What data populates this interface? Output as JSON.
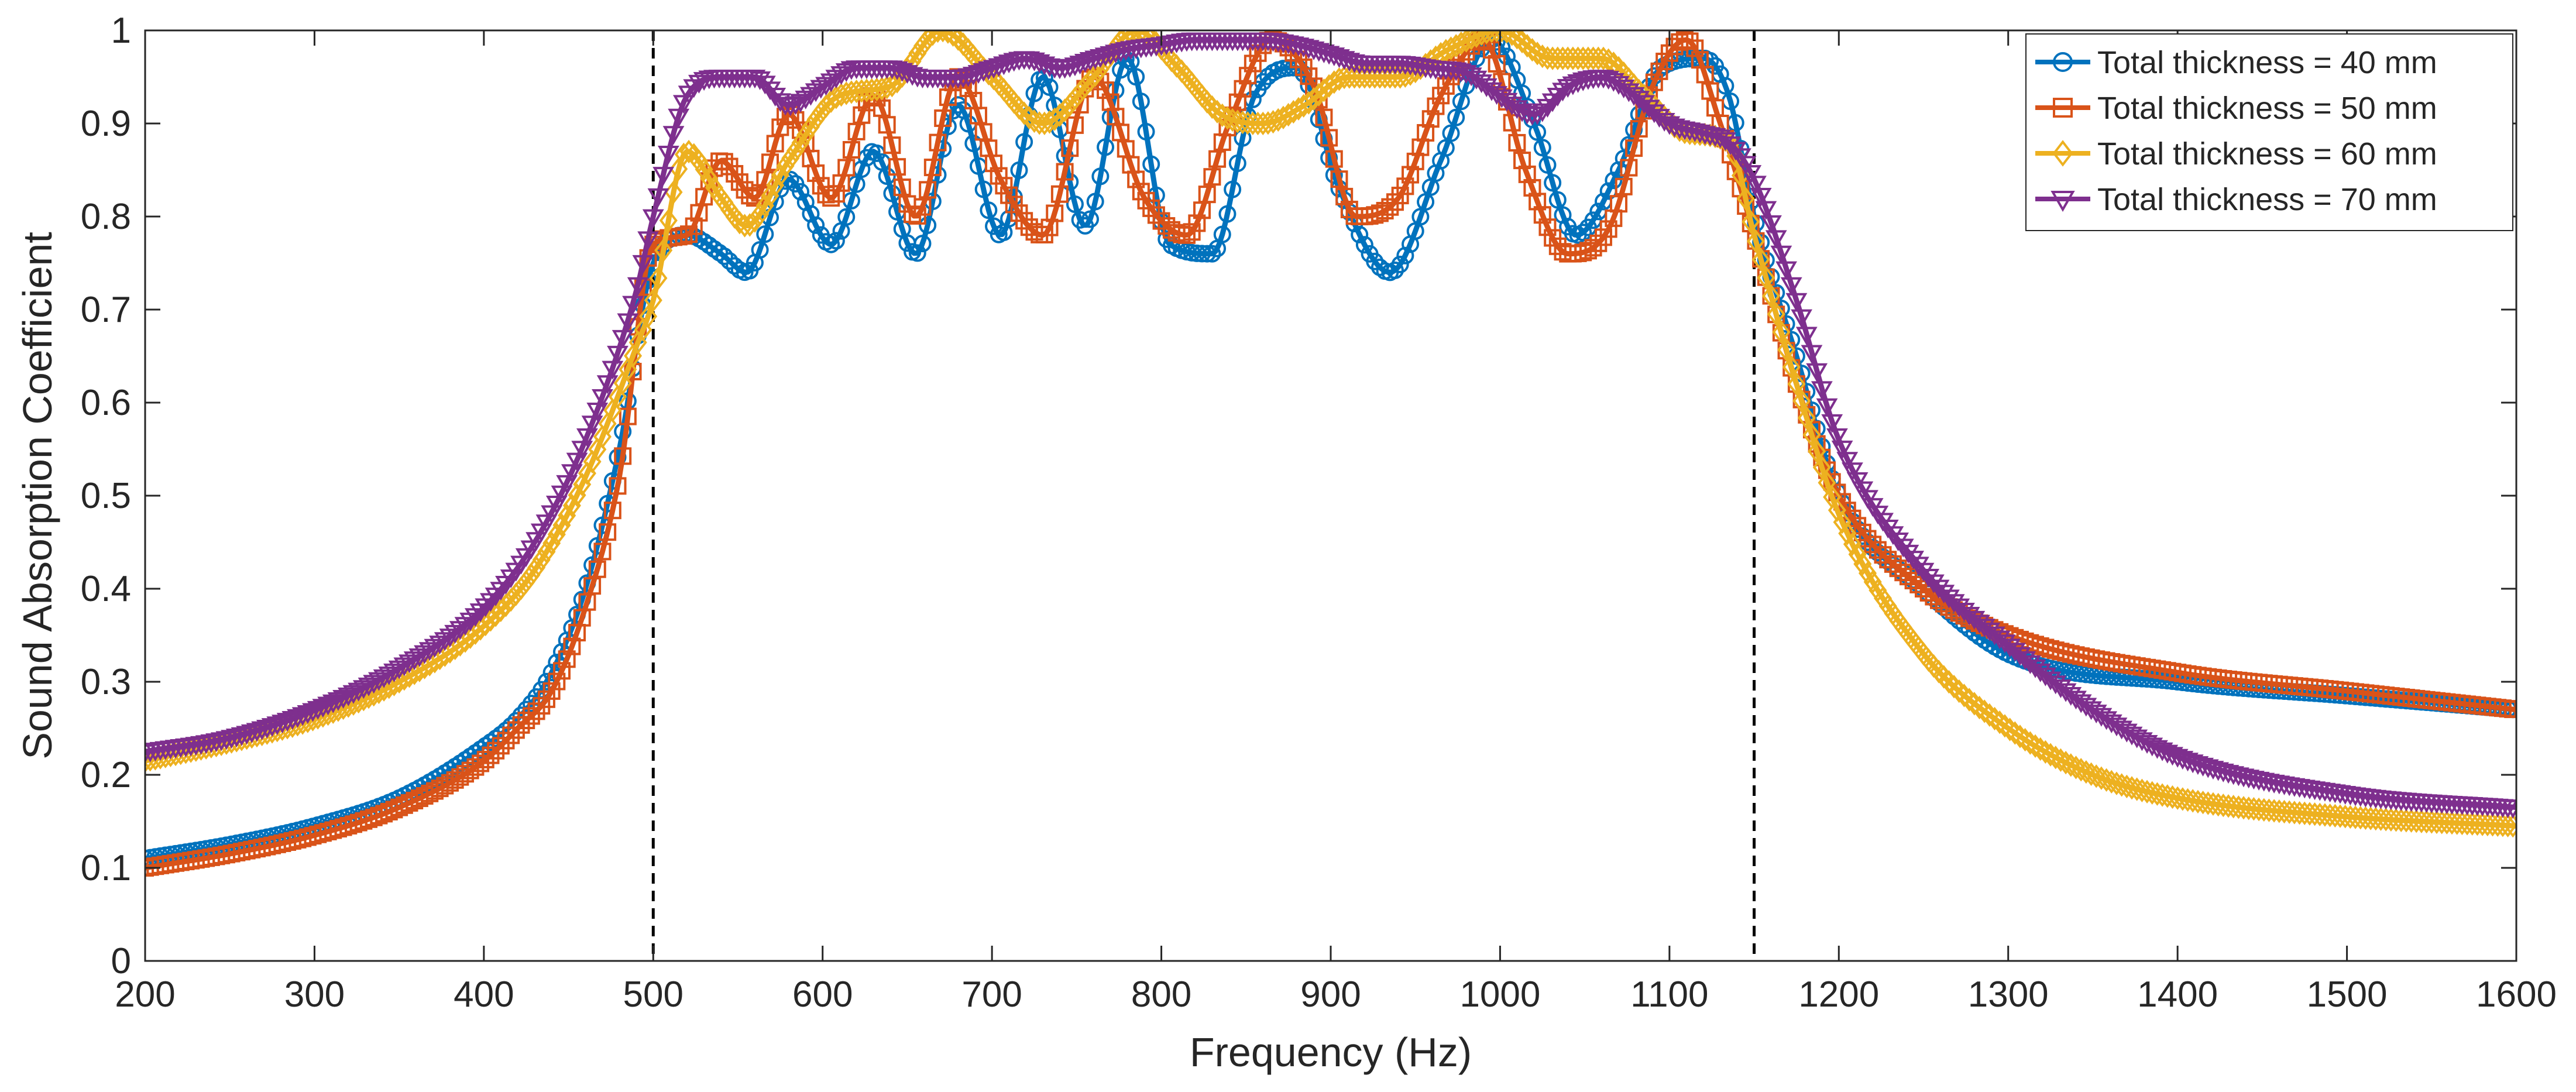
{
  "chart_data": {
    "type": "line",
    "title": "",
    "xlabel": "Frequency (Hz)",
    "ylabel": "Sound Absorption Coefficient",
    "xlim": [
      200,
      1600
    ],
    "ylim": [
      0,
      1
    ],
    "xticks": [
      200,
      300,
      400,
      500,
      600,
      700,
      800,
      900,
      1000,
      1100,
      1200,
      1300,
      1400,
      1500,
      1600
    ],
    "xtick_labels": [
      "200",
      "300",
      "400",
      "500",
      "600",
      "700",
      "800",
      "900",
      "1000",
      "1100",
      "1200",
      "1300",
      "1400",
      "1500",
      "1600"
    ],
    "yticks": [
      0,
      0.1,
      0.2,
      0.3,
      0.4,
      0.5,
      0.6,
      0.7,
      0.8,
      0.9,
      1
    ],
    "ytick_labels": [
      "0",
      "0.1",
      "0.2",
      "0.3",
      "0.4",
      "0.5",
      "0.6",
      "0.7",
      "0.8",
      "0.9",
      "1"
    ],
    "grid": false,
    "legend_position": "top-right",
    "reference_lines": [
      {
        "x": 500,
        "style": "dashed",
        "color": "#000000"
      },
      {
        "x": 1150,
        "style": "dashed",
        "color": "#000000"
      }
    ],
    "series": [
      {
        "name": "Total thickness = 40 mm",
        "color": "#0072BD",
        "marker": "circle",
        "x": [
          200,
          250,
          300,
          350,
          400,
          420,
          440,
          460,
          480,
          500,
          520,
          540,
          555,
          580,
          605,
          630,
          655,
          680,
          705,
          730,
          755,
          780,
          805,
          830,
          855,
          880,
          905,
          935,
          965,
          995,
          1020,
          1045,
          1070,
          1095,
          1120,
          1135,
          1150,
          1175,
          1200,
          1250,
          1300,
          1400,
          1500,
          1600
        ],
        "y": [
          0.11,
          0.125,
          0.145,
          0.175,
          0.23,
          0.26,
          0.31,
          0.4,
          0.55,
          0.75,
          0.78,
          0.76,
          0.74,
          0.84,
          0.77,
          0.87,
          0.76,
          0.92,
          0.78,
          0.95,
          0.79,
          0.97,
          0.77,
          0.76,
          0.93,
          0.96,
          0.83,
          0.74,
          0.86,
          0.99,
          0.9,
          0.78,
          0.85,
          0.96,
          0.97,
          0.93,
          0.8,
          0.65,
          0.5,
          0.4,
          0.33,
          0.3,
          0.285,
          0.27
        ]
      },
      {
        "name": "Total thickness = 50 mm",
        "color": "#D95319",
        "marker": "square",
        "x": [
          200,
          250,
          300,
          350,
          400,
          420,
          440,
          460,
          480,
          500,
          520,
          540,
          560,
          580,
          605,
          630,
          655,
          680,
          705,
          730,
          760,
          790,
          815,
          840,
          865,
          890,
          915,
          940,
          965,
          990,
          1015,
          1040,
          1065,
          1090,
          1110,
          1130,
          1150,
          1175,
          1200,
          1250,
          1300,
          1400,
          1500,
          1600
        ],
        "y": [
          0.1,
          0.115,
          0.135,
          0.165,
          0.215,
          0.25,
          0.29,
          0.38,
          0.52,
          0.77,
          0.78,
          0.86,
          0.82,
          0.91,
          0.82,
          0.93,
          0.8,
          0.95,
          0.84,
          0.78,
          0.95,
          0.82,
          0.78,
          0.9,
          0.99,
          0.94,
          0.8,
          0.82,
          0.93,
          0.99,
          0.85,
          0.76,
          0.79,
          0.94,
          0.99,
          0.9,
          0.78,
          0.62,
          0.5,
          0.4,
          0.35,
          0.31,
          0.29,
          0.27
        ]
      },
      {
        "name": "Total thickness = 60 mm",
        "color": "#EDB120",
        "marker": "diamond",
        "x": [
          200,
          250,
          300,
          350,
          400,
          430,
          460,
          490,
          500,
          520,
          540,
          555,
          580,
          610,
          640,
          670,
          700,
          730,
          760,
          785,
          810,
          835,
          860,
          885,
          910,
          940,
          970,
          1000,
          1030,
          1060,
          1085,
          1110,
          1135,
          1150,
          1175,
          1200,
          1250,
          1300,
          1350,
          1400,
          1500,
          1600
        ],
        "y": [
          0.215,
          0.235,
          0.26,
          0.3,
          0.36,
          0.42,
          0.52,
          0.66,
          0.71,
          0.87,
          0.82,
          0.79,
          0.86,
          0.93,
          0.94,
          1.0,
          0.95,
          0.9,
          0.95,
          1.0,
          0.96,
          0.91,
          0.9,
          0.92,
          0.95,
          0.95,
          0.98,
          1.0,
          0.97,
          0.97,
          0.93,
          0.89,
          0.88,
          0.78,
          0.62,
          0.48,
          0.33,
          0.25,
          0.2,
          0.175,
          0.155,
          0.145
        ]
      },
      {
        "name": "Total thickness = 70 mm",
        "color": "#7E2F8E",
        "marker": "triangle-down",
        "x": [
          200,
          250,
          300,
          350,
          400,
          430,
          460,
          490,
          500,
          520,
          540,
          560,
          580,
          600,
          620,
          640,
          660,
          680,
          700,
          720,
          740,
          760,
          780,
          800,
          820,
          840,
          860,
          880,
          900,
          920,
          940,
          960,
          980,
          1000,
          1020,
          1040,
          1060,
          1080,
          1100,
          1120,
          1135,
          1150,
          1175,
          1200,
          1250,
          1300,
          1350,
          1400,
          1500,
          1600
        ],
        "y": [
          0.225,
          0.24,
          0.27,
          0.315,
          0.38,
          0.45,
          0.56,
          0.72,
          0.8,
          0.93,
          0.95,
          0.95,
          0.92,
          0.94,
          0.96,
          0.96,
          0.95,
          0.95,
          0.96,
          0.97,
          0.96,
          0.97,
          0.98,
          0.985,
          0.99,
          0.99,
          0.99,
          0.985,
          0.975,
          0.965,
          0.965,
          0.96,
          0.955,
          0.93,
          0.91,
          0.94,
          0.95,
          0.93,
          0.9,
          0.89,
          0.88,
          0.84,
          0.71,
          0.56,
          0.42,
          0.34,
          0.27,
          0.22,
          0.18,
          0.165
        ]
      }
    ]
  }
}
